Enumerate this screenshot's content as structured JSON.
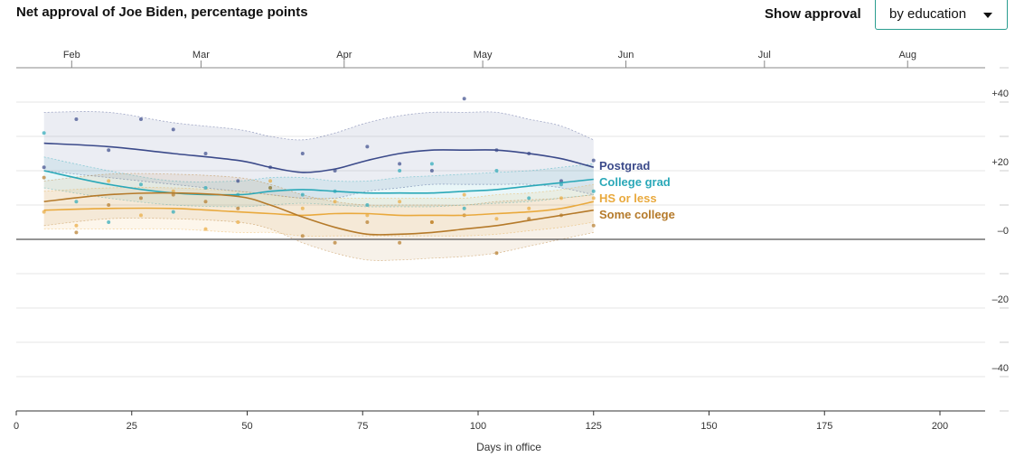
{
  "title": "Net approval of Joe Biden, percentage points",
  "controls": {
    "show_label": "Show approval",
    "select_value": "by education",
    "caret_icon": "chevron-down-icon"
  },
  "chart_data": {
    "type": "line",
    "title": "Net approval of Joe Biden, percentage points",
    "xlabel": "Days in office",
    "ylabel": "",
    "xlim": [
      0,
      210
    ],
    "ylim": [
      -50,
      50
    ],
    "x_ticks": [
      0,
      25,
      50,
      75,
      100,
      125,
      150,
      175,
      200
    ],
    "y_ticks": [
      {
        "value": 40,
        "label": "+40"
      },
      {
        "value": 20,
        "label": "+20"
      },
      {
        "value": 0,
        "label": "–0"
      },
      {
        "value": -20,
        "label": "–20"
      },
      {
        "value": -40,
        "label": "–40"
      }
    ],
    "month_ticks": [
      {
        "label": "Feb",
        "day": 12
      },
      {
        "label": "Mar",
        "day": 40
      },
      {
        "label": "Apr",
        "day": 71
      },
      {
        "label": "May",
        "day": 101
      },
      {
        "label": "Jun",
        "day": 132
      },
      {
        "label": "Jul",
        "day": 162
      },
      {
        "label": "Aug",
        "day": 193
      }
    ],
    "series": [
      {
        "name": "Postgrad",
        "color": "#3b4a8a",
        "x": [
          6,
          20,
          34,
          48,
          55,
          62,
          69,
          76,
          83,
          90,
          97,
          104,
          111,
          118,
          125
        ],
        "y": [
          28,
          27,
          25,
          23,
          21,
          19.5,
          20.5,
          23,
          25,
          26,
          26,
          26,
          25,
          23.5,
          21
        ],
        "upper": [
          37,
          37,
          34,
          32,
          30,
          29,
          31,
          34,
          36,
          37,
          37,
          37,
          35,
          33,
          29
        ],
        "lower": [
          20,
          18,
          16,
          14,
          13,
          12,
          12,
          14,
          15,
          16,
          16,
          16,
          16,
          15,
          13
        ],
        "points": [
          [
            6,
            21
          ],
          [
            13,
            35
          ],
          [
            20,
            26
          ],
          [
            27,
            35
          ],
          [
            34,
            32
          ],
          [
            41,
            25
          ],
          [
            48,
            17
          ],
          [
            55,
            21
          ],
          [
            62,
            25
          ],
          [
            69,
            20
          ],
          [
            76,
            27
          ],
          [
            83,
            22
          ],
          [
            90,
            20
          ],
          [
            97,
            41
          ],
          [
            104,
            26
          ],
          [
            111,
            25
          ],
          [
            118,
            17
          ],
          [
            125,
            23
          ]
        ]
      },
      {
        "name": "College grad",
        "color": "#2aa8b8",
        "x": [
          6,
          20,
          34,
          48,
          55,
          62,
          69,
          76,
          83,
          90,
          97,
          104,
          111,
          118,
          125
        ],
        "y": [
          20,
          16,
          13.5,
          13,
          14,
          14.5,
          14,
          13.5,
          13.5,
          13.5,
          14,
          14.5,
          15.5,
          16.5,
          17.5
        ],
        "upper": [
          24,
          20,
          17,
          17,
          18,
          18,
          17,
          17,
          18,
          18.5,
          19,
          19.5,
          20,
          21,
          22
        ],
        "lower": [
          15,
          12,
          10,
          9.5,
          10,
          10.5,
          10,
          9.5,
          9.5,
          9.5,
          10,
          10.5,
          11,
          12,
          13
        ],
        "points": [
          [
            6,
            31
          ],
          [
            13,
            11
          ],
          [
            20,
            5
          ],
          [
            27,
            16
          ],
          [
            34,
            8
          ],
          [
            41,
            15
          ],
          [
            48,
            13
          ],
          [
            55,
            15
          ],
          [
            62,
            13
          ],
          [
            69,
            14
          ],
          [
            76,
            10
          ],
          [
            83,
            20
          ],
          [
            90,
            22
          ],
          [
            97,
            9
          ],
          [
            104,
            20
          ],
          [
            111,
            12
          ],
          [
            118,
            16
          ],
          [
            125,
            14
          ]
        ]
      },
      {
        "name": "HS or less",
        "color": "#e9a93d",
        "x": [
          6,
          20,
          34,
          48,
          55,
          62,
          69,
          76,
          83,
          90,
          97,
          104,
          111,
          118,
          125
        ],
        "y": [
          8.5,
          9,
          9,
          8,
          7.5,
          7,
          7.5,
          7.5,
          7,
          7,
          7,
          7.5,
          8,
          9,
          11
        ],
        "upper": [
          14,
          15,
          15,
          14,
          13,
          12,
          12,
          12,
          12,
          12,
          12,
          13,
          13.5,
          14.5,
          16
        ],
        "lower": [
          3,
          3,
          3,
          2,
          2,
          1,
          1,
          1,
          1,
          1,
          1,
          1.5,
          2.5,
          3.5,
          5
        ],
        "points": [
          [
            6,
            8
          ],
          [
            13,
            4
          ],
          [
            20,
            17
          ],
          [
            27,
            7
          ],
          [
            34,
            14
          ],
          [
            41,
            3
          ],
          [
            48,
            5
          ],
          [
            55,
            17
          ],
          [
            62,
            9
          ],
          [
            69,
            11
          ],
          [
            76,
            7
          ],
          [
            83,
            11
          ],
          [
            90,
            5
          ],
          [
            97,
            13
          ],
          [
            104,
            6
          ],
          [
            111,
            9
          ],
          [
            118,
            12
          ],
          [
            125,
            12
          ]
        ]
      },
      {
        "name": "Some college",
        "color": "#b57a2a",
        "x": [
          6,
          20,
          34,
          48,
          55,
          62,
          69,
          76,
          83,
          90,
          97,
          104,
          111,
          118,
          125
        ],
        "y": [
          11,
          13,
          13.5,
          12.5,
          10,
          6.5,
          3.5,
          1.5,
          1.5,
          2,
          3,
          4,
          5.5,
          7,
          8.5
        ],
        "upper": [
          17,
          19,
          19,
          18,
          16,
          13,
          11,
          10,
          10,
          10,
          10,
          11,
          11.5,
          12,
          13
        ],
        "lower": [
          4,
          6,
          6,
          5,
          3,
          -1,
          -4,
          -6,
          -6,
          -5.5,
          -5,
          -4,
          -2,
          0,
          2
        ],
        "points": [
          [
            6,
            18
          ],
          [
            13,
            2
          ],
          [
            20,
            10
          ],
          [
            27,
            12
          ],
          [
            34,
            13
          ],
          [
            41,
            11
          ],
          [
            48,
            9
          ],
          [
            55,
            15
          ],
          [
            62,
            1
          ],
          [
            69,
            -1
          ],
          [
            76,
            5
          ],
          [
            83,
            -1
          ],
          [
            90,
            5
          ],
          [
            97,
            7
          ],
          [
            104,
            -4
          ],
          [
            111,
            6
          ],
          [
            118,
            7
          ],
          [
            125,
            4
          ]
        ]
      }
    ],
    "grid": true
  }
}
